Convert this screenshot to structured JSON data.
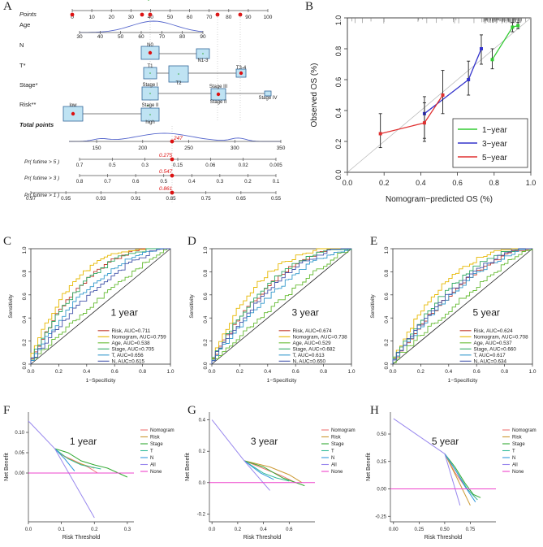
{
  "panel_letters": {
    "A": "A",
    "B": "B",
    "C": "C",
    "D": "D",
    "E": "E",
    "F": "F",
    "G": "G",
    "H": "H"
  },
  "nomogram": {
    "rows": [
      {
        "label": "Points",
        "italic": true,
        "bold": false,
        "ticks": [
          0,
          10,
          20,
          30,
          40,
          50,
          60,
          70,
          80,
          90,
          100
        ],
        "range": [
          0,
          100
        ]
      },
      {
        "label": "Age",
        "italic": false,
        "bold": false,
        "ticks": [
          30,
          40,
          50,
          60,
          70,
          80,
          90
        ],
        "range": [
          30,
          90
        ]
      },
      {
        "label": "N",
        "italic": false,
        "bold": false,
        "levels": [
          "N0",
          "N1-3"
        ]
      },
      {
        "label": "T*",
        "italic": false,
        "bold": false,
        "levels": [
          "T1",
          "T2",
          "T3-4"
        ]
      },
      {
        "label": "Stage*",
        "italic": false,
        "bold": false,
        "levels": [
          "Stage I",
          "Stage II",
          "Stage III",
          "Stage IV"
        ]
      },
      {
        "label": "Risk**",
        "italic": false,
        "bold": false,
        "levels": [
          "low",
          "high"
        ]
      },
      {
        "label": "Total points",
        "italic": true,
        "bold": true,
        "ticks": [
          150,
          200,
          250,
          300,
          350
        ],
        "range": [
          120,
          350
        ]
      },
      {
        "label": "Pr( futime > 5 )",
        "italic": true,
        "bold": false,
        "ticks": [
          "0.7",
          "0.5",
          "0.3",
          "0.15",
          "0.06",
          "0.02",
          "0.005"
        ]
      },
      {
        "label": "Pr( futime > 3 )",
        "italic": true,
        "bold": false,
        "ticks": [
          "0.8",
          "0.7",
          "0.6",
          "0.5",
          "0.4",
          "0.3",
          "0.2",
          "0.1"
        ]
      },
      {
        "label": "Pr( futime > 1 )",
        "italic": true,
        "bold": false,
        "ticks": [
          "0.97",
          "0.95",
          "0.93",
          "0.91",
          "0.85",
          "0.75",
          "0.65",
          "0.55"
        ]
      }
    ],
    "total_points_value": "247",
    "predictions": {
      "y5": "0.275",
      "y3": "0.547",
      "y1": "0.861"
    }
  },
  "chart_data": [
    {
      "panel": "B",
      "type": "line",
      "xlabel": "Nomogram−predicted OS (%)",
      "ylabel": "Observed OS (%)",
      "xlim": [
        0,
        1
      ],
      "ylim": [
        0,
        1
      ],
      "xticks": [
        "0.0",
        "0.2",
        "0.4",
        "0.6",
        "0.8",
        "1.0"
      ],
      "yticks": [
        "0.0",
        "0.2",
        "0.4",
        "0.6",
        "0.8",
        "1.0"
      ],
      "series": [
        {
          "name": "1−year",
          "color": "#33cc33",
          "x": [
            0.79,
            0.9,
            0.93
          ],
          "y": [
            0.73,
            0.94,
            0.95
          ],
          "lo": [
            0.67,
            0.91,
            0.93
          ],
          "hi": [
            0.8,
            0.97,
            0.97
          ]
        },
        {
          "name": "3−year",
          "color": "#3333cc",
          "x": [
            0.42,
            0.66,
            0.73
          ],
          "y": [
            0.38,
            0.6,
            0.8
          ],
          "lo": [
            0.22,
            0.5,
            0.7
          ],
          "hi": [
            0.49,
            0.72,
            0.89
          ]
        },
        {
          "name": "5−year",
          "color": "#e03030",
          "x": [
            0.18,
            0.42,
            0.52
          ],
          "y": [
            0.25,
            0.32,
            0.5
          ],
          "lo": [
            0.16,
            0.2,
            0.38
          ],
          "hi": [
            0.38,
            0.45,
            0.66
          ]
        }
      ],
      "legend": "bottom-right"
    },
    {
      "panel": "C",
      "type": "line",
      "annotation": "1 year",
      "xlabel": "1−Specificity",
      "ylabel": "Sensitivity",
      "xticks": [
        "0.0",
        "0.2",
        "0.4",
        "0.6",
        "0.8",
        "1.0"
      ],
      "yticks": [
        "0.0",
        "0.2",
        "0.4",
        "0.6",
        "0.8",
        "1.0"
      ],
      "series": [
        {
          "name": "Risk, AUC=0.711",
          "color": "#c0392b",
          "auc": 0.711
        },
        {
          "name": "Nomogram, AUC=0.759",
          "color": "#e6b800",
          "auc": 0.759
        },
        {
          "name": "Age, AUC=0.538",
          "color": "#66bb33",
          "auc": 0.538
        },
        {
          "name": "Stage, AUC=0.705",
          "color": "#33aa66",
          "auc": 0.705
        },
        {
          "name": "T, AUC=0.656",
          "color": "#3399cc",
          "auc": 0.656
        },
        {
          "name": "N, AUC=0.615",
          "color": "#4455aa",
          "auc": 0.615
        }
      ]
    },
    {
      "panel": "D",
      "type": "line",
      "annotation": "3 year",
      "xlabel": "1−Specificity",
      "ylabel": "Sensitivity",
      "xticks": [
        "0.0",
        "0.2",
        "0.4",
        "0.6",
        "0.8",
        "1.0"
      ],
      "yticks": [
        "0.0",
        "0.2",
        "0.4",
        "0.6",
        "0.8",
        "1.0"
      ],
      "series": [
        {
          "name": "Risk, AUC=0.674",
          "color": "#c0392b",
          "auc": 0.674
        },
        {
          "name": "Nomogram, AUC=0.738",
          "color": "#e6b800",
          "auc": 0.738
        },
        {
          "name": "Age, AUC=0.529",
          "color": "#66bb33",
          "auc": 0.529
        },
        {
          "name": "Stage, AUC=0.682",
          "color": "#33aa66",
          "auc": 0.682
        },
        {
          "name": "T, AUC=0.613",
          "color": "#3399cc",
          "auc": 0.613
        },
        {
          "name": "N, AUC=0.650",
          "color": "#4455aa",
          "auc": 0.65
        }
      ]
    },
    {
      "panel": "E",
      "type": "line",
      "annotation": "5 year",
      "xlabel": "1−Specificity",
      "ylabel": "Sensitivity",
      "xticks": [
        "0.0",
        "0.2",
        "0.4",
        "0.6",
        "0.8",
        "1.0"
      ],
      "yticks": [
        "0.0",
        "0.2",
        "0.4",
        "0.6",
        "0.8",
        "1.0"
      ],
      "series": [
        {
          "name": "Risk, AUC=0.624",
          "color": "#c0392b",
          "auc": 0.624
        },
        {
          "name": "Nomogram, AUC=0.708",
          "color": "#e6b800",
          "auc": 0.708
        },
        {
          "name": "Age, AUC=0.537",
          "color": "#66bb33",
          "auc": 0.537
        },
        {
          "name": "Stage, AUC=0.660",
          "color": "#33aa66",
          "auc": 0.66
        },
        {
          "name": "T, AUC=0.617",
          "color": "#3399cc",
          "auc": 0.617
        },
        {
          "name": "N, AUC=0.634",
          "color": "#4455aa",
          "auc": 0.634
        }
      ]
    },
    {
      "panel": "F",
      "type": "line",
      "annotation": "1 year",
      "xlabel": "Risk Threshold",
      "ylabel": "Net Benefit",
      "xlim": [
        0,
        0.32
      ],
      "ylim": [
        -0.12,
        0.15
      ],
      "xticks": [
        "0.0",
        "0.1",
        "0.2",
        "0.3"
      ],
      "xtickvals": [
        0,
        0.1,
        0.2,
        0.3
      ],
      "yticks": [
        "0.00",
        "0.05",
        "0.10"
      ],
      "ytickvals": [
        0,
        0.05,
        0.1
      ],
      "series": [
        {
          "name": "Nomogram",
          "color": "#ee7777",
          "x": [
            0.08,
            0.1,
            0.14,
            0.18,
            0.21
          ],
          "y": [
            0.06,
            0.045,
            0.03,
            0.015,
            0.0
          ]
        },
        {
          "name": "Risk",
          "color": "#cc9933",
          "x": [
            0.08,
            0.11,
            0.15,
            0.2
          ],
          "y": [
            0.06,
            0.04,
            0.025,
            0.012
          ]
        },
        {
          "name": "Stage",
          "color": "#33aa33",
          "x": [
            0.08,
            0.12,
            0.16,
            0.2,
            0.24,
            0.3
          ],
          "y": [
            0.06,
            0.05,
            0.03,
            0.02,
            0.012,
            -0.01
          ]
        },
        {
          "name": "T",
          "color": "#33bb99",
          "x": [
            0.08,
            0.12,
            0.16,
            0.22
          ],
          "y": [
            0.06,
            0.035,
            0.02,
            0.01
          ]
        },
        {
          "name": "N",
          "color": "#3399dd",
          "x": [
            0.08,
            0.11,
            0.14
          ],
          "y": [
            0.06,
            0.035,
            0.005
          ]
        },
        {
          "name": "All",
          "color": "#9988ee",
          "x": [
            0,
            0.08,
            0.2
          ],
          "y": [
            0.128,
            0.06,
            -0.11
          ]
        },
        {
          "name": "None",
          "color": "#ee44cc",
          "x": [
            0,
            0.32
          ],
          "y": [
            0,
            0
          ]
        }
      ]
    },
    {
      "panel": "G",
      "type": "line",
      "annotation": "3 year",
      "xlabel": "Risk Threshold",
      "ylabel": "Net Benefit",
      "xlim": [
        -0.02,
        0.8
      ],
      "ylim": [
        -0.25,
        0.45
      ],
      "xticks": [
        "0.0",
        "0.2",
        "0.4",
        "0.6"
      ],
      "xtickvals": [
        0,
        0.2,
        0.4,
        0.6
      ],
      "yticks": [
        "-0.2",
        "0.0",
        "0.2",
        "0.4"
      ],
      "ytickvals": [
        -0.2,
        0,
        0.2,
        0.4
      ],
      "series": [
        {
          "name": "Nomogram",
          "color": "#ee7777",
          "x": [
            0.25,
            0.4,
            0.55,
            0.65
          ],
          "y": [
            0.14,
            0.09,
            0.04,
            0.0
          ]
        },
        {
          "name": "Risk",
          "color": "#cc9933",
          "x": [
            0.25,
            0.45,
            0.6,
            0.7
          ],
          "y": [
            0.14,
            0.1,
            0.05,
            0.0
          ]
        },
        {
          "name": "Stage",
          "color": "#33aa33",
          "x": [
            0.25,
            0.4,
            0.55,
            0.72
          ],
          "y": [
            0.14,
            0.1,
            0.03,
            -0.02
          ]
        },
        {
          "name": "T",
          "color": "#33bb99",
          "x": [
            0.25,
            0.4,
            0.5,
            0.6
          ],
          "y": [
            0.14,
            0.06,
            0.03,
            0.01
          ]
        },
        {
          "name": "N",
          "color": "#3399dd",
          "x": [
            0.25,
            0.38,
            0.48
          ],
          "y": [
            0.14,
            0.06,
            0.02
          ]
        },
        {
          "name": "All",
          "color": "#9988ee",
          "x": [
            0,
            0.25,
            0.45
          ],
          "y": [
            0.4,
            0.14,
            -0.05
          ]
        },
        {
          "name": "None",
          "color": "#ee44cc",
          "x": [
            -0.02,
            0.8
          ],
          "y": [
            0,
            0
          ]
        }
      ]
    },
    {
      "panel": "H",
      "type": "line",
      "annotation": "5 year",
      "xlabel": "Risk Threshold",
      "ylabel": "Net Benefit",
      "xlim": [
        -0.03,
        1.0
      ],
      "ylim": [
        -0.3,
        0.7
      ],
      "xticks": [
        "0.00",
        "0.25",
        "0.50",
        "0.75"
      ],
      "xtickvals": [
        0,
        0.25,
        0.5,
        0.75
      ],
      "yticks": [
        "-0.25",
        "0.00",
        "0.25",
        "0.50"
      ],
      "ytickvals": [
        -0.25,
        0,
        0.25,
        0.5
      ],
      "series": [
        {
          "name": "Nomogram",
          "color": "#ee7777",
          "x": [
            0.5,
            0.6,
            0.7,
            0.8
          ],
          "y": [
            0.32,
            0.15,
            0.02,
            -0.08
          ]
        },
        {
          "name": "Risk",
          "color": "#cc9933",
          "x": [
            0.5,
            0.62,
            0.75
          ],
          "y": [
            0.32,
            0.1,
            -0.15
          ]
        },
        {
          "name": "Stage",
          "color": "#33aa33",
          "x": [
            0.5,
            0.6,
            0.7,
            0.78,
            0.85
          ],
          "y": [
            0.32,
            0.2,
            0.05,
            -0.05,
            -0.08
          ]
        },
        {
          "name": "T",
          "color": "#33bb99",
          "x": [
            0.5,
            0.62,
            0.72,
            0.82
          ],
          "y": [
            0.32,
            0.15,
            0.0,
            -0.1
          ]
        },
        {
          "name": "N",
          "color": "#3399dd",
          "x": [
            0.5,
            0.6,
            0.7,
            0.8
          ],
          "y": [
            0.32,
            0.18,
            0.02,
            -0.12
          ]
        },
        {
          "name": "All",
          "color": "#9988ee",
          "x": [
            0,
            0.5,
            0.65
          ],
          "y": [
            0.64,
            0.32,
            -0.15
          ]
        },
        {
          "name": "None",
          "color": "#ee44cc",
          "x": [
            -0.03,
            1.0
          ],
          "y": [
            0,
            0
          ]
        }
      ]
    }
  ]
}
